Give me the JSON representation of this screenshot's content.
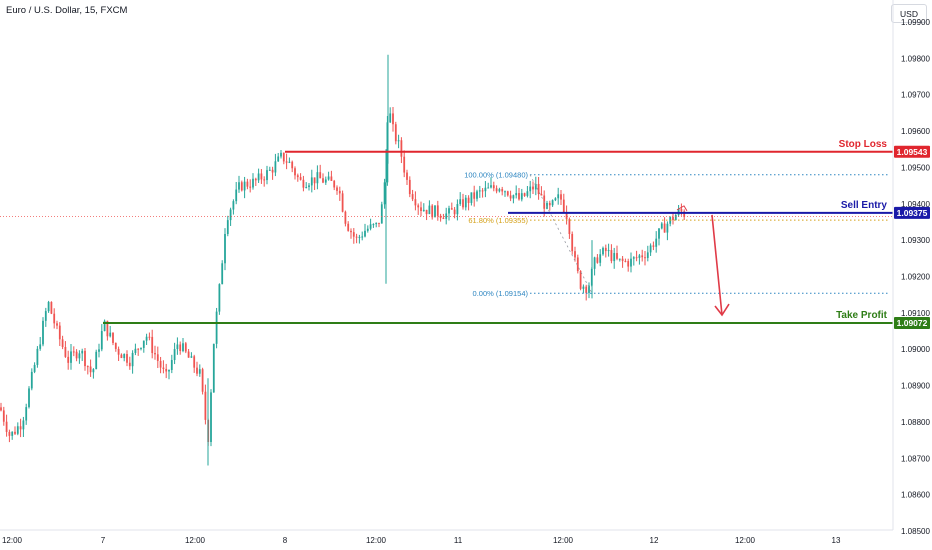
{
  "header": {
    "symbol_title": "Euro / U.S. Dollar, 15, FXCM",
    "currency_button": "USD"
  },
  "colors": {
    "up": "#26a69a",
    "down": "#ef5350",
    "stop_loss": "#e0262e",
    "sell_entry": "#1a1aa8",
    "take_profit": "#2e7d16",
    "fib": "#2e86c1",
    "fib_61": "#d4a017",
    "arrow": "#e03a47",
    "grid": "#f0f3fa"
  },
  "chart_data": {
    "type": "candlestick",
    "title": "Euro / U.S. Dollar, 15, FXCM",
    "ylim": [
      1.085,
      1.099
    ],
    "y_ticks": [
      "1.08500",
      "1.08600",
      "1.08700",
      "1.08800",
      "1.08900",
      "1.09000",
      "1.09100",
      "1.09200",
      "1.09300",
      "1.09400",
      "1.09500",
      "1.09600",
      "1.09700",
      "1.09800",
      "1.09900"
    ],
    "x_ticks": [
      "12:00",
      "7",
      "12:00",
      "8",
      "12:00",
      "11",
      "12:00",
      "12",
      "12:00",
      "13"
    ],
    "levels": [
      {
        "name": "Stop Loss",
        "price": 1.09543,
        "badge": "1.09543"
      },
      {
        "name": "Sell Entry",
        "price": 1.09375,
        "badge": "1.09375"
      },
      {
        "name": "Take Profit",
        "price": 1.09072,
        "badge": "1.09072"
      }
    ],
    "fibonacci": [
      {
        "label": "100.00% (1.09480)",
        "price": 1.0948
      },
      {
        "label": "61.80% (1.09355)",
        "price": 1.09355
      },
      {
        "label": "0.00% (1.09154)",
        "price": 1.09154
      }
    ],
    "anchors": [
      [
        0,
        1.0884
      ],
      [
        10,
        1.0876
      ],
      [
        22,
        1.088
      ],
      [
        35,
        1.0896
      ],
      [
        48,
        1.0913
      ],
      [
        58,
        1.0904
      ],
      [
        68,
        1.0897
      ],
      [
        80,
        1.09
      ],
      [
        92,
        1.0893
      ],
      [
        104,
        1.0907
      ],
      [
        116,
        1.09
      ],
      [
        130,
        1.0897
      ],
      [
        146,
        1.0904
      ],
      [
        156,
        1.0898
      ],
      [
        166,
        1.0892
      ],
      [
        178,
        1.0902
      ],
      [
        190,
        1.0897
      ],
      [
        200,
        1.0893
      ],
      [
        208,
        1.0875
      ],
      [
        214,
        1.0903
      ],
      [
        220,
        1.0918
      ],
      [
        226,
        1.0936
      ],
      [
        240,
        1.0945
      ],
      [
        255,
        1.0946
      ],
      [
        270,
        1.0949
      ],
      [
        282,
        1.0953
      ],
      [
        290,
        1.0951
      ],
      [
        300,
        1.0946
      ],
      [
        318,
        1.0947
      ],
      [
        338,
        1.0945
      ],
      [
        346,
        1.0935
      ],
      [
        356,
        1.093
      ],
      [
        366,
        1.0933
      ],
      [
        378,
        1.0934
      ],
      [
        384,
        1.0942
      ],
      [
        388,
        1.0968
      ],
      [
        392,
        1.0961
      ],
      [
        400,
        1.0955
      ],
      [
        408,
        1.0945
      ],
      [
        420,
        1.0939
      ],
      [
        432,
        1.0938
      ],
      [
        448,
        1.0937
      ],
      [
        462,
        1.094
      ],
      [
        480,
        1.0943
      ],
      [
        500,
        1.0945
      ],
      [
        520,
        1.0941
      ],
      [
        535,
        1.0945
      ],
      [
        548,
        1.0938
      ],
      [
        560,
        1.0942
      ],
      [
        568,
        1.0936
      ],
      [
        574,
        1.0925
      ],
      [
        580,
        1.0918
      ],
      [
        588,
        1.0917
      ],
      [
        596,
        1.0925
      ],
      [
        606,
        1.0927
      ],
      [
        618,
        1.0924
      ],
      [
        630,
        1.0924
      ],
      [
        648,
        1.0927
      ],
      [
        662,
        1.0933
      ],
      [
        672,
        1.0936
      ],
      [
        680,
        1.0938
      ],
      [
        686,
        1.0937
      ]
    ],
    "wick_spikes": [
      {
        "x": 388,
        "high": 1.0981,
        "low": 1.0951
      },
      {
        "x": 386,
        "high": 1.0955,
        "low": 1.0918
      },
      {
        "x": 208,
        "high": 1.0892,
        "low": 1.0868
      },
      {
        "x": 592,
        "high": 1.093,
        "low": 1.0914
      }
    ]
  }
}
